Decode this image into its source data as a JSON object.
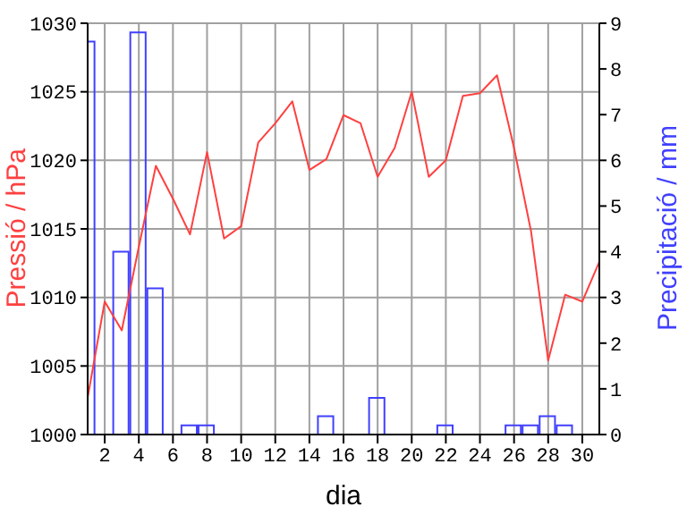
{
  "chart_data": {
    "type": "line",
    "xlabel": "dia",
    "ylabel": "Pressió / hPa",
    "y2label": "Precipitació / mm",
    "x": [
      1,
      2,
      3,
      4,
      5,
      6,
      7,
      8,
      9,
      10,
      11,
      12,
      13,
      14,
      15,
      16,
      17,
      18,
      19,
      20,
      21,
      22,
      23,
      24,
      25,
      26,
      27,
      28,
      29,
      30,
      31
    ],
    "series": [
      {
        "color": "#ff4040",
        "values": [
          1002.7,
          1009.7,
          1007.6,
          1013.7,
          1019.6,
          1017.2,
          1014.6,
          1020.6,
          1014.3,
          1015.2,
          1021.3,
          1022.7,
          1024.3,
          1019.3,
          1020.1,
          1023.3,
          1022.7,
          1018.8,
          1020.9,
          1025.0,
          1018.8,
          1020.0,
          1024.7,
          1024.9,
          1026.2,
          1020.9,
          1014.8,
          1005.4,
          1010.2,
          1009.7,
          1012.6
        ]
      },
      {
        "type": "bar",
        "axis": "y2",
        "color": "#4040ff",
        "values": [
          8.6,
          0,
          4.0,
          8.8,
          3.2,
          0,
          0.2,
          0.2,
          0,
          0,
          0,
          0,
          0,
          0,
          0.4,
          0,
          0,
          0.8,
          0,
          0,
          0,
          0.2,
          0,
          0,
          0,
          0.2,
          0.2,
          0.4,
          0.2,
          0,
          0
        ]
      }
    ],
    "xlim": [
      1,
      31
    ],
    "xticks": [
      2,
      4,
      6,
      8,
      10,
      12,
      14,
      16,
      18,
      20,
      22,
      24,
      26,
      28,
      30
    ],
    "ylim": [
      1000,
      1030
    ],
    "yticks": [
      1000,
      1005,
      1010,
      1015,
      1020,
      1025,
      1030
    ],
    "y2lim": [
      0,
      9
    ],
    "y2ticks": [
      0,
      1,
      2,
      3,
      4,
      5,
      6,
      7,
      8,
      9
    ],
    "grid": true,
    "legend": false,
    "marker": "none",
    "line_style": "solid"
  }
}
